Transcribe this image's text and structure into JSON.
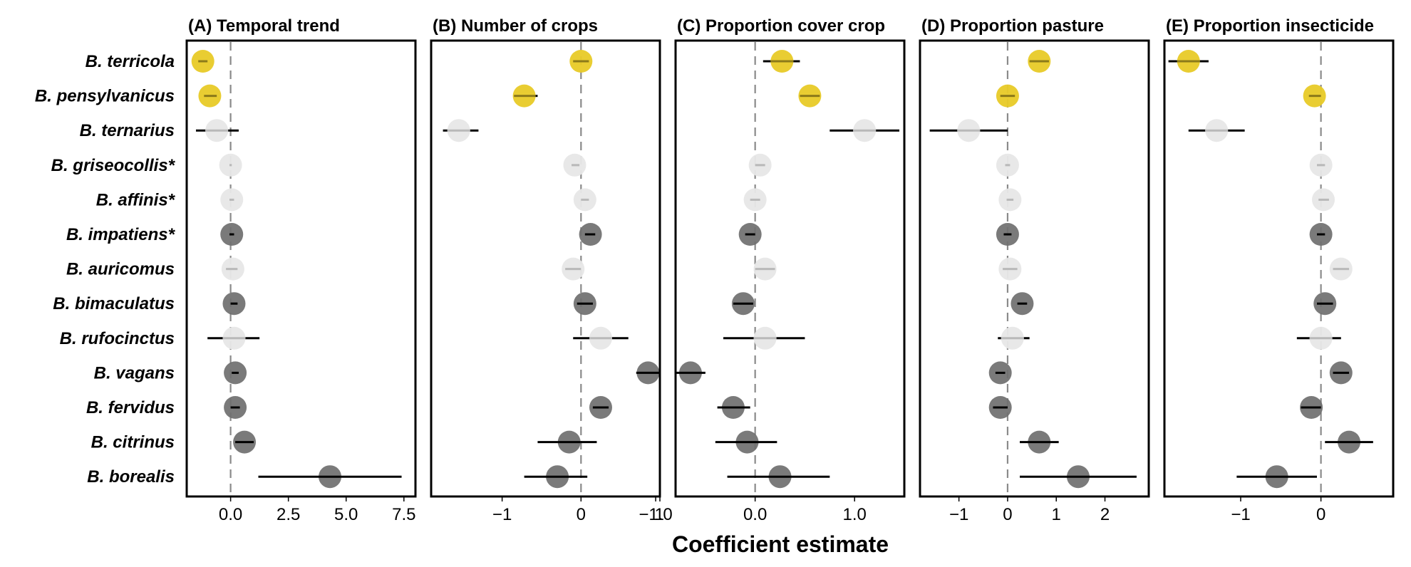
{
  "x_axis_title": "Coefficient estimate",
  "species_note": "*",
  "colors": {
    "positive_significant": "#e8cb2a",
    "negative_significant": "#6f6f6f",
    "nonsignificant": "#e7e7e7",
    "ci_dark": "#000000",
    "ci_light": "#b9b9b9",
    "ci_on_yellow": "#8c7a1a"
  },
  "chart_data": [
    {
      "type": "scatter",
      "panel": "A",
      "title": "(A) Temporal trend",
      "xlabel": "",
      "ylabel": "",
      "xlim": [
        -1.9,
        8.0
      ],
      "xticks": [
        0,
        2.5,
        5,
        7.5
      ],
      "xtick_labels": [
        "0.0",
        "2.5",
        "5.0",
        "7.5"
      ],
      "categories": [
        "B. terricola",
        "B. pensylvanicus",
        "B. ternarius",
        "B. griseocollis*",
        "B. affinis*",
        "B. impatiens*",
        "B. auricomus",
        "B. bimaculatus",
        "B. rufocinctus",
        "B. vagans",
        "B. fervidus",
        "B. citrinus",
        "B. borealis"
      ],
      "estimates": [
        -1.2,
        -0.9,
        -0.6,
        0.0,
        0.05,
        0.05,
        0.1,
        0.15,
        0.15,
        0.2,
        0.2,
        0.6,
        4.3
      ],
      "ci_low": [
        -1.4,
        -1.15,
        -1.5,
        -0.05,
        -0.05,
        -0.05,
        -0.2,
        0.0,
        -1.0,
        0.05,
        0.0,
        0.2,
        1.2
      ],
      "ci_high": [
        -1.0,
        -0.6,
        0.35,
        0.05,
        0.15,
        0.15,
        0.3,
        0.3,
        1.25,
        0.35,
        0.4,
        1.0,
        7.4
      ],
      "status": [
        "pos",
        "pos",
        "ns",
        "ns",
        "ns",
        "neg",
        "ns",
        "neg",
        "ns",
        "neg",
        "neg",
        "neg",
        "neg"
      ]
    },
    {
      "type": "scatter",
      "panel": "B",
      "title": "(B) Number of crops",
      "xlabel": "",
      "ylabel": "",
      "xlim": [
        -1.9,
        1.0
      ],
      "xticks": [
        -1,
        0,
        1
      ],
      "xtick_labels": [
        "−1",
        "0",
        "1"
      ],
      "categories": [
        "B. terricola",
        "B. pensylvanicus",
        "B. ternarius",
        "B. griseocollis*",
        "B. affinis*",
        "B. impatiens*",
        "B. auricomus",
        "B. bimaculatus",
        "B. rufocinctus",
        "B. vagans",
        "B. fervidus",
        "B. citrinus",
        "B. borealis"
      ],
      "estimates": [
        0.0,
        -0.72,
        -1.55,
        -0.08,
        0.05,
        0.12,
        -0.1,
        0.05,
        0.25,
        0.85,
        0.25,
        -0.15,
        -0.3
      ],
      "ci_low": [
        -0.1,
        -0.85,
        -1.75,
        -0.12,
        0.0,
        0.05,
        -0.2,
        -0.05,
        -0.1,
        0.7,
        0.15,
        -0.55,
        -0.72
      ],
      "ci_high": [
        0.1,
        -0.55,
        -1.3,
        -0.02,
        0.1,
        0.18,
        0.0,
        0.15,
        0.6,
        1.0,
        0.35,
        0.2,
        0.08
      ],
      "status": [
        "pos",
        "pos",
        "ns",
        "ns",
        "ns",
        "neg",
        "ns",
        "neg",
        "ns",
        "neg",
        "neg",
        "neg",
        "neg"
      ]
    },
    {
      "type": "scatter",
      "panel": "C",
      "title": "(C) Proportion cover crop",
      "xlabel": "",
      "ylabel": "",
      "xlim": [
        -0.8,
        1.5
      ],
      "xticks": [
        -1.0,
        0.0,
        1.0
      ],
      "xtick_labels": [
        "−1.0",
        "0.0",
        "1.0"
      ],
      "categories": [
        "B. terricola",
        "B. pensylvanicus",
        "B. ternarius",
        "B. griseocollis*",
        "B. affinis*",
        "B. impatiens*",
        "B. auricomus",
        "B. bimaculatus",
        "B. rufocinctus",
        "B. vagans",
        "B. fervidus",
        "B. citrinus",
        "B. borealis"
      ],
      "estimates": [
        0.27,
        0.55,
        1.1,
        0.05,
        0.0,
        -0.05,
        0.1,
        -0.12,
        0.1,
        -0.65,
        -0.22,
        -0.08,
        0.25
      ],
      "ci_low": [
        0.08,
        0.45,
        0.75,
        0.0,
        -0.05,
        -0.1,
        0.0,
        -0.22,
        -0.32,
        -0.8,
        -0.38,
        -0.4,
        -0.28
      ],
      "ci_high": [
        0.45,
        0.65,
        1.45,
        0.1,
        0.05,
        0.0,
        0.2,
        -0.02,
        0.5,
        -0.5,
        -0.05,
        0.22,
        0.75
      ],
      "status": [
        "pos",
        "pos",
        "ns",
        "ns",
        "ns",
        "neg",
        "ns",
        "neg",
        "ns",
        "neg",
        "neg",
        "neg",
        "neg"
      ]
    },
    {
      "type": "scatter",
      "panel": "D",
      "title": "(D) Proportion pasture",
      "xlabel": "",
      "ylabel": "",
      "xlim": [
        -1.8,
        2.9
      ],
      "xticks": [
        -1,
        0,
        1,
        2
      ],
      "xtick_labels": [
        "−1",
        "0",
        "1",
        "2"
      ],
      "categories": [
        "B. terricola",
        "B. pensylvanicus",
        "B. ternarius",
        "B. griseocollis*",
        "B. affinis*",
        "B. impatiens*",
        "B. auricomus",
        "B. bimaculatus",
        "B. rufocinctus",
        "B. vagans",
        "B. fervidus",
        "B. citrinus",
        "B. borealis"
      ],
      "estimates": [
        0.65,
        0.0,
        -0.8,
        0.0,
        0.05,
        0.0,
        0.05,
        0.3,
        0.1,
        -0.15,
        -0.15,
        0.65,
        1.45
      ],
      "ci_low": [
        0.45,
        -0.15,
        -1.6,
        -0.05,
        -0.02,
        -0.08,
        -0.1,
        0.2,
        -0.2,
        -0.25,
        -0.3,
        0.25,
        0.25
      ],
      "ci_high": [
        0.85,
        0.15,
        0.0,
        0.05,
        0.12,
        0.08,
        0.2,
        0.4,
        0.45,
        -0.05,
        0.0,
        1.05,
        2.65
      ],
      "status": [
        "pos",
        "pos",
        "ns",
        "ns",
        "ns",
        "neg",
        "ns",
        "neg",
        "ns",
        "neg",
        "neg",
        "neg",
        "neg"
      ]
    },
    {
      "type": "scatter",
      "panel": "E",
      "title": "(E) Proportion insecticide",
      "xlabel": "",
      "ylabel": "",
      "xlim": [
        -1.95,
        0.9
      ],
      "xticks": [
        -1,
        0
      ],
      "xtick_labels": [
        "−1",
        "0"
      ],
      "categories": [
        "B. terricola",
        "B. pensylvanicus",
        "B. ternarius",
        "B. griseocollis*",
        "B. affinis*",
        "B. impatiens*",
        "B. auricomus",
        "B. bimaculatus",
        "B. rufocinctus",
        "B. vagans",
        "B. fervidus",
        "B. citrinus",
        "B. borealis"
      ],
      "estimates": [
        -1.65,
        -0.08,
        -1.3,
        0.0,
        0.03,
        0.0,
        0.25,
        0.05,
        0.0,
        0.25,
        -0.12,
        0.35,
        -0.55
      ],
      "ci_low": [
        -1.9,
        -0.15,
        -1.65,
        -0.05,
        -0.03,
        -0.05,
        0.15,
        -0.05,
        -0.3,
        0.15,
        -0.25,
        0.05,
        -1.05
      ],
      "ci_high": [
        -1.4,
        0.0,
        -0.95,
        0.05,
        0.1,
        0.05,
        0.35,
        0.15,
        0.25,
        0.35,
        0.0,
        0.65,
        -0.05
      ],
      "status": [
        "pos",
        "pos",
        "ns",
        "ns",
        "ns",
        "neg",
        "ns",
        "neg",
        "ns",
        "neg",
        "neg",
        "neg",
        "neg"
      ]
    }
  ]
}
